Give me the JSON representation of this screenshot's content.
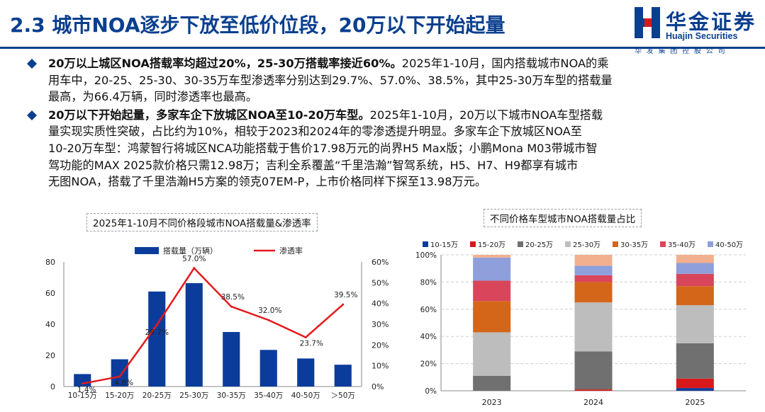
{
  "title": "2.3 城市NOA逐步下放至低价位段，20万以下开始起量",
  "logo": {
    "cn": "华金证券",
    "en": "Huajin Securities",
    "sub": "华发集团控股公司",
    "colors": {
      "blue": "#0a3f8f",
      "red": "#d7191c"
    }
  },
  "bullets": [
    {
      "bold": "20万以上城区NOA搭载率均超过20%，25-30万搭载率接近60%。",
      "lines": [
        "2025年1-10月，国内搭载城市NOA的乘",
        "用车中，20-25、25-30、30-35万车型渗透率分别达到29.7%、57.0%、38.5%，其中25-30万车型的搭载量",
        "最高，为66.4万辆，同时渗透率也最高。"
      ]
    },
    {
      "bold": "20万以下开始起量，多家车企下放城区NOA至10-20万车型。",
      "lines": [
        "2025年1-10月，20万以下城市NOA车型搭载",
        "量实现实质性突破，占比约为10%，相较于2023和2024年的零渗透提升明显。多家车企下放城区NOA至",
        "10-20万车型：鸿蒙智行将城区NCA功能搭载于售价17.98万元的尚界H5 Max版；小鹏Mona M03带城市智",
        "驾功能的MAX 2025款价格只需12.98万；吉利全系覆盖“千里浩瀚”智驾系统，H5、H7、H9都享有城市",
        "无图NOA，搭载了千里浩瀚H5方案的领克07EM-P，上市价格同样下探至13.98万元。"
      ]
    }
  ],
  "chart_data": [
    {
      "type": "bar",
      "title": "2025年1-10月不同价格段城市NOA搭载量&渗透率",
      "categories": [
        "10-15万",
        "15-20万",
        "20-25万",
        "25-30万",
        "30-35万",
        "35-40万",
        "40-50万",
        "＞50万"
      ],
      "series": [
        {
          "name": "搭载量（万辆）",
          "type": "bar",
          "axis": "left",
          "color": "#0b3c9c",
          "values": [
            8.0,
            17.5,
            61.0,
            66.4,
            35.0,
            23.5,
            18.0,
            14.0
          ]
        },
        {
          "name": "渗透率",
          "type": "line",
          "axis": "right",
          "color": "#e41a1c",
          "values": [
            1.4,
            4.8,
            29.7,
            57.0,
            38.5,
            32.0,
            23.7,
            39.5
          ],
          "labels": [
            "1.4%",
            "4.8%",
            "29.7%",
            "57.0%",
            "38.5%",
            "32.0%",
            "23.7%",
            "39.5%"
          ]
        }
      ],
      "ylim_left": [
        0,
        80
      ],
      "yticks_left": [
        "0",
        "20",
        "40",
        "60",
        "80"
      ],
      "ylim_right": [
        0,
        60
      ],
      "yticks_right": [
        "0%",
        "10%",
        "20%",
        "30%",
        "40%",
        "50%",
        "60%"
      ],
      "legend": "top"
    },
    {
      "type": "bar",
      "stacked": true,
      "title": "不同价格车型城市NOA搭载量占比",
      "categories": [
        "2023",
        "2024",
        "2025"
      ],
      "series": [
        {
          "name": "10-15万",
          "color": "#0b3c9c",
          "values": [
            0,
            0,
            2
          ]
        },
        {
          "name": "15-20万",
          "color": "#d7191c",
          "values": [
            0,
            1,
            7
          ]
        },
        {
          "name": "20-25万",
          "color": "#707070",
          "values": [
            11,
            28,
            26
          ]
        },
        {
          "name": "25-30万",
          "color": "#bdbdbd",
          "values": [
            32,
            36,
            28
          ]
        },
        {
          "name": "30-35万",
          "color": "#d4661a",
          "values": [
            23,
            15,
            14
          ]
        },
        {
          "name": "35-40万",
          "color": "#d9455a",
          "values": [
            15,
            5,
            9
          ]
        },
        {
          "name": "40-50万",
          "color": "#8e9fdc",
          "values": [
            17,
            7,
            8
          ]
        },
        {
          "name": "＞50万",
          "color": "#f2b08e",
          "values": [
            2,
            8,
            6
          ]
        }
      ],
      "ylim": [
        0,
        100
      ],
      "yticks": [
        "0%",
        "20%",
        "40%",
        "60%",
        "80%",
        "100%"
      ],
      "legend": "top"
    }
  ]
}
